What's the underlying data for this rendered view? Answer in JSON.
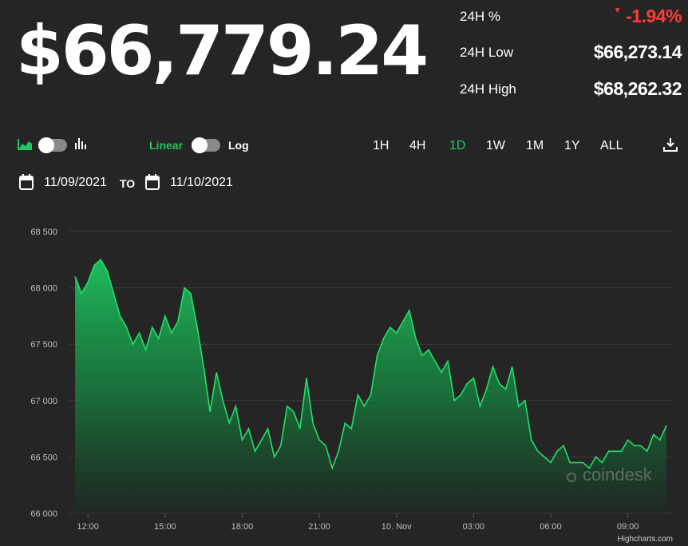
{
  "price": "$66,779.24",
  "stats": {
    "change_label": "24H %",
    "change_value": "-1.94%",
    "low_label": "24H Low",
    "low_value": "$66,273.14",
    "high_label": "24H High",
    "high_value": "$68,262.32"
  },
  "controls": {
    "linear_label": "Linear",
    "log_label": "Log",
    "ranges": [
      "1H",
      "4H",
      "1D",
      "1W",
      "1M",
      "1Y",
      "ALL"
    ],
    "active_range": "1D"
  },
  "dates": {
    "from": "11/09/2021",
    "to_label": "TO",
    "to": "11/10/2021"
  },
  "watermark": "coindesk",
  "credit": "Highcharts.com",
  "colors": {
    "accent": "#22c55e",
    "negative": "#ff3b3b",
    "background": "#252525",
    "grid": "#3c3c3c"
  },
  "chart_data": {
    "type": "area",
    "title": "",
    "xlabel": "",
    "ylabel": "",
    "ylim": [
      66000,
      68500
    ],
    "yticks": [
      66000,
      66500,
      67000,
      67500,
      68000,
      68500
    ],
    "ytick_labels": [
      "66 000",
      "66 500",
      "67 000",
      "67 500",
      "68 000",
      "68 500"
    ],
    "xlim": [
      11.25,
      34.75
    ],
    "xticks": [
      12,
      15,
      18,
      21,
      24,
      27,
      30,
      33
    ],
    "xtick_labels": [
      "12:00",
      "15:00",
      "18:00",
      "21:00",
      "10. Nov",
      "03:00",
      "06:00",
      "09:00"
    ],
    "grid": true,
    "legend": "none",
    "series": [
      {
        "x": [
          11.5,
          11.75,
          12.0,
          12.25,
          12.5,
          12.75,
          13.0,
          13.25,
          13.5,
          13.75,
          14.0,
          14.25,
          14.5,
          14.75,
          15.0,
          15.25,
          15.5,
          15.75,
          16.0,
          16.25,
          16.5,
          16.75,
          17.0,
          17.25,
          17.5,
          17.75,
          18.0,
          18.25,
          18.5,
          18.75,
          19.0,
          19.25,
          19.5,
          19.75,
          20.0,
          20.25,
          20.5,
          20.75,
          21.0,
          21.25,
          21.5,
          21.75,
          22.0,
          22.25,
          22.5,
          22.75,
          23.0,
          23.25,
          23.5,
          23.75,
          24.0,
          24.25,
          24.5,
          24.75,
          25.0,
          25.25,
          25.5,
          25.75,
          26.0,
          26.25,
          26.5,
          26.75,
          27.0,
          27.25,
          27.5,
          27.75,
          28.0,
          28.25,
          28.5,
          28.75,
          29.0,
          29.25,
          29.5,
          29.75,
          30.0,
          30.25,
          30.5,
          30.75,
          31.0,
          31.25,
          31.5,
          31.75,
          32.0,
          32.25,
          32.5,
          32.75,
          33.0,
          33.25,
          33.5,
          33.75,
          34.0,
          34.25,
          34.5
        ],
        "values": [
          68100,
          67950,
          68050,
          68200,
          68250,
          68150,
          67950,
          67750,
          67650,
          67500,
          67600,
          67450,
          67650,
          67550,
          67750,
          67600,
          67700,
          68000,
          67950,
          67650,
          67300,
          66900,
          67250,
          67000,
          66800,
          66950,
          66650,
          66750,
          66550,
          66650,
          66750,
          66500,
          66600,
          66950,
          66900,
          66750,
          67200,
          66800,
          66650,
          66600,
          66400,
          66550,
          66800,
          66750,
          67050,
          66950,
          67050,
          67400,
          67550,
          67650,
          67600,
          67700,
          67800,
          67550,
          67400,
          67450,
          67350,
          67250,
          67350,
          67000,
          67050,
          67150,
          67200,
          66950,
          67100,
          67300,
          67150,
          67100,
          67300,
          66950,
          67000,
          66650,
          66550,
          66500,
          66450,
          66550,
          66600,
          66450,
          66450,
          66450,
          66400,
          66500,
          66450,
          66550,
          66550,
          66550,
          66650,
          66600,
          66600,
          66550,
          66700,
          66650,
          66779
        ]
      }
    ]
  }
}
